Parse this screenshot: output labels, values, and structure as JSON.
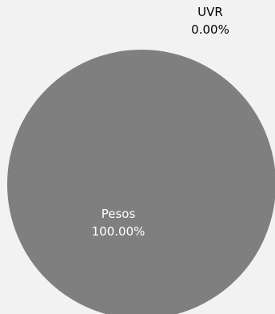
{
  "chart_data": {
    "type": "pie",
    "slices": [
      {
        "label": "Pesos",
        "value": 100.0,
        "value_label": "100.00%",
        "color": "#7f7f7f",
        "label_color": "#ffffff"
      },
      {
        "label": "UVR",
        "value": 0.0,
        "value_label": "0.00%",
        "color": "#bfbfbf",
        "label_color": "#000000"
      }
    ],
    "background": "#f2f2f2"
  }
}
